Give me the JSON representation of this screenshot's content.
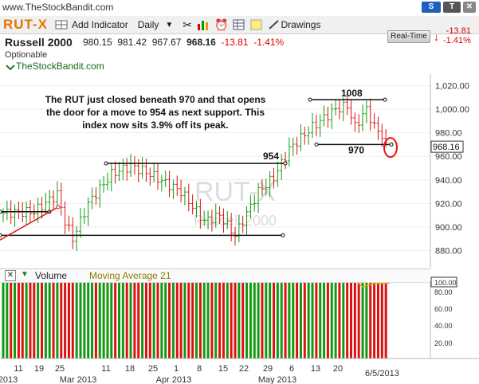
{
  "site": "www.TheStockBandit.com",
  "toolbar": {
    "symbol": "RUT-X",
    "add_indicator": "Add Indicator",
    "period": "Daily",
    "drawings": "Drawings",
    "top_buttons": [
      "S",
      "T",
      "✕"
    ]
  },
  "quote": {
    "name": "Russell 2000",
    "open": "980.15",
    "high": "981.42",
    "low": "967.67",
    "close": "968.16",
    "change": "-13.81",
    "change_pct": "-1.41%",
    "optionable": "Optionable",
    "realtime_label": "Real-Time",
    "rt_change": "-13.81",
    "rt_change_pct": "-1.41%"
  },
  "chart_title": "TheStockBandit.com",
  "watermark": {
    "symbol": "RUT-X",
    "name": "Russell 2000"
  },
  "annotation": "The RUT just closed beneath 970 and that opens the door for a move to 954 as next support. This index now sits 3.9% off its peak.",
  "level_labels": [
    "1008",
    "954",
    "970"
  ],
  "price_label": "968.16",
  "volume_panel": {
    "label": "Volume",
    "ma_label": "Moving Average 21",
    "last_value": "100.00"
  },
  "date_label": "6/5/2013",
  "chart_data": {
    "type": "ohlc",
    "title": "",
    "ylim": [
      870,
      1030
    ],
    "yticks": [
      880,
      900,
      920,
      940,
      960,
      980,
      1000,
      1020
    ],
    "ytick_labels": [
      "880.00",
      "900.00",
      "920.00",
      "940.00",
      "960.00",
      "980.00",
      "1,000.00",
      "1,020.00"
    ],
    "horizontal_levels": [
      {
        "label": "1008",
        "value": 1008
      },
      {
        "label": "954",
        "value": 954
      },
      {
        "label": "970",
        "value": 970
      },
      {
        "label": "",
        "value": 913
      },
      {
        "label": "",
        "value": 893
      }
    ],
    "x_day_labels": [
      "11",
      "19",
      "25",
      "11",
      "18",
      "25",
      "1",
      "8",
      "15",
      "22",
      "29",
      "6",
      "13",
      "20"
    ],
    "x_month_labels": [
      "2013",
      "Mar 2013",
      "Apr 2013",
      "May 2013"
    ],
    "volume_yticks": [
      "100.00",
      "80.00",
      "60.00",
      "40.00",
      "20.00"
    ],
    "last_close": 968.16
  },
  "colors": {
    "up": "#119911",
    "down": "#dd1111",
    "symbol": "#e07800",
    "circle": "#ee1111"
  }
}
